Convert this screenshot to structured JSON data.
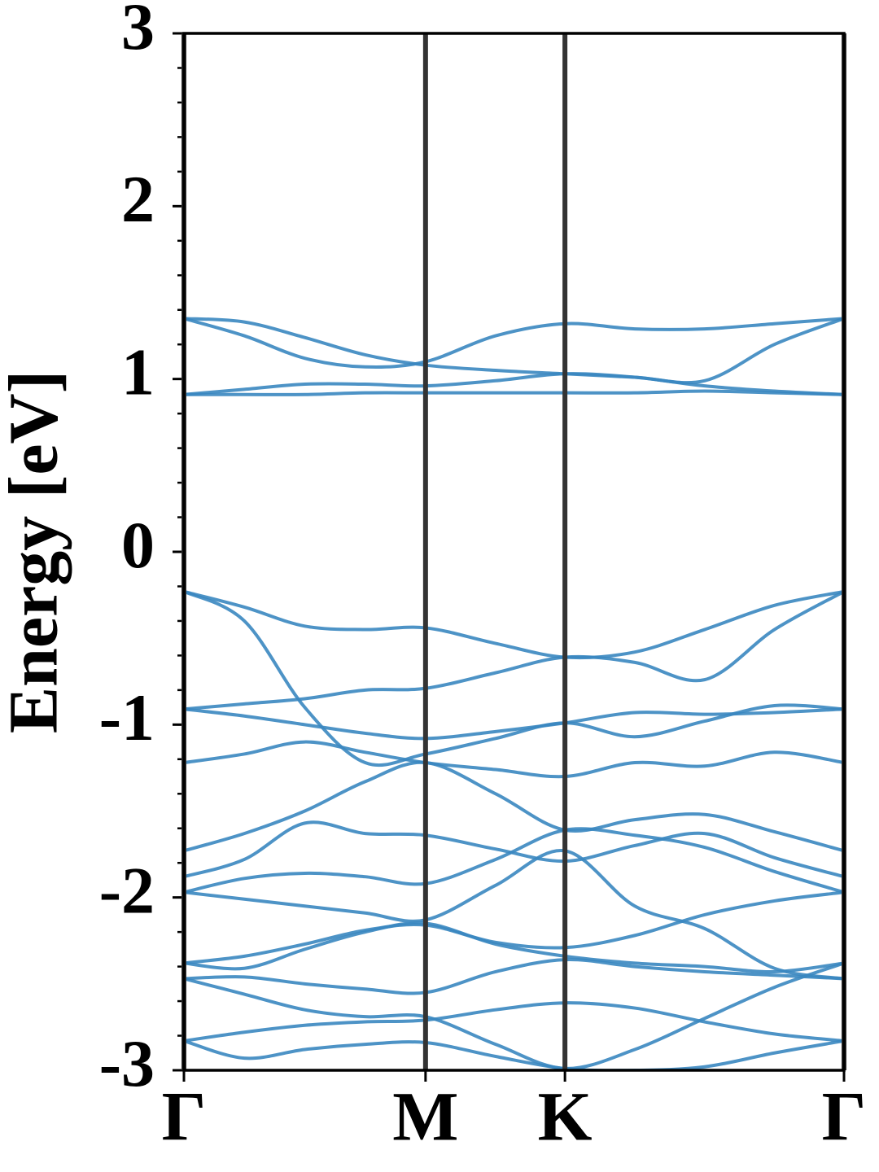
{
  "chart_data": {
    "type": "line",
    "y_label": "Energy [eV]",
    "x": [
      0,
      0.25,
      0.5,
      0.75,
      1,
      1.29,
      1.577,
      1.866,
      2.155,
      2.444,
      2.732
    ],
    "xlim": [
      0,
      2.732
    ],
    "xticks": [
      {
        "value": 0,
        "label": "Γ"
      },
      {
        "value": 1,
        "label": "M"
      },
      {
        "value": 1.577,
        "label": "K"
      },
      {
        "value": 2.732,
        "label": "Γ"
      }
    ],
    "xgrid": true,
    "xgrid_color": "#333333",
    "ylim": [
      -3,
      3
    ],
    "yticks": [
      -3,
      -2,
      -1,
      0,
      1,
      2,
      3
    ],
    "y_minor_step": 0.2,
    "color": "#3a87c0",
    "series": [
      {
        "values": [
          0.91,
          0.91,
          0.91,
          0.92,
          0.92,
          0.92,
          0.92,
          0.92,
          0.93,
          0.92,
          0.91
        ]
      },
      {
        "values": [
          0.91,
          0.94,
          0.97,
          0.97,
          0.96,
          0.99,
          1.03,
          1.01,
          0.96,
          0.93,
          0.91
        ]
      },
      {
        "values": [
          1.35,
          1.25,
          1.12,
          1.07,
          1.1,
          1.25,
          1.32,
          1.29,
          1.29,
          1.32,
          1.35
        ]
      },
      {
        "values": [
          1.35,
          1.33,
          1.24,
          1.14,
          1.08,
          1.05,
          1.03,
          1.01,
          0.99,
          1.2,
          1.35
        ]
      },
      {
        "values": [
          -0.23,
          -0.32,
          -0.43,
          -0.45,
          -0.44,
          -0.53,
          -0.61,
          -0.58,
          -0.45,
          -0.31,
          -0.23
        ]
      },
      {
        "values": [
          -0.23,
          -0.4,
          -0.9,
          -1.22,
          -1.17,
          -1.08,
          -0.99,
          -1.07,
          -0.98,
          -0.89,
          -0.91
        ]
      },
      {
        "values": [
          -0.91,
          -0.88,
          -0.85,
          -0.8,
          -0.79,
          -0.7,
          -0.61,
          -0.64,
          -0.74,
          -0.45,
          -0.23
        ]
      },
      {
        "values": [
          -0.91,
          -0.95,
          -1.0,
          -1.05,
          -1.08,
          -1.04,
          -0.99,
          -0.93,
          -0.94,
          -0.93,
          -0.91
        ]
      },
      {
        "values": [
          -1.22,
          -1.17,
          -1.1,
          -1.16,
          -1.22,
          -1.26,
          -1.3,
          -1.22,
          -1.24,
          -1.16,
          -1.22
        ]
      },
      {
        "values": [
          -1.73,
          -1.63,
          -1.5,
          -1.33,
          -1.22,
          -1.4,
          -1.61,
          -1.55,
          -1.52,
          -1.62,
          -1.73
        ]
      },
      {
        "values": [
          -1.88,
          -1.78,
          -1.57,
          -1.63,
          -1.64,
          -1.72,
          -1.79,
          -1.7,
          -1.63,
          -1.77,
          -1.88
        ]
      },
      {
        "values": [
          -1.97,
          -1.89,
          -1.86,
          -1.88,
          -1.92,
          -1.78,
          -1.61,
          -1.64,
          -1.71,
          -1.85,
          -1.97
        ]
      },
      {
        "values": [
          -1.97,
          -2.01,
          -2.05,
          -2.09,
          -2.13,
          -1.93,
          -1.73,
          -2.05,
          -2.18,
          -2.41,
          -2.47
        ]
      },
      {
        "values": [
          -2.38,
          -2.34,
          -2.27,
          -2.19,
          -2.16,
          -2.26,
          -2.29,
          -2.22,
          -2.1,
          -2.02,
          -1.97
        ]
      },
      {
        "values": [
          -2.38,
          -2.41,
          -2.3,
          -2.2,
          -2.15,
          -2.27,
          -2.34,
          -2.38,
          -2.4,
          -2.43,
          -2.38
        ]
      },
      {
        "values": [
          -2.47,
          -2.46,
          -2.5,
          -2.53,
          -2.55,
          -2.43,
          -2.36,
          -2.4,
          -2.43,
          -2.45,
          -2.47
        ]
      },
      {
        "values": [
          -2.47,
          -2.56,
          -2.65,
          -2.69,
          -2.69,
          -2.85,
          -2.99,
          -2.88,
          -2.7,
          -2.52,
          -2.38
        ]
      },
      {
        "values": [
          -2.83,
          -2.78,
          -2.74,
          -2.72,
          -2.71,
          -2.65,
          -2.61,
          -2.64,
          -2.72,
          -2.79,
          -2.83
        ]
      },
      {
        "values": [
          -2.83,
          -2.93,
          -2.88,
          -2.85,
          -2.84,
          -2.92,
          -2.99,
          -3.0,
          -2.98,
          -2.9,
          -2.83
        ]
      }
    ]
  }
}
